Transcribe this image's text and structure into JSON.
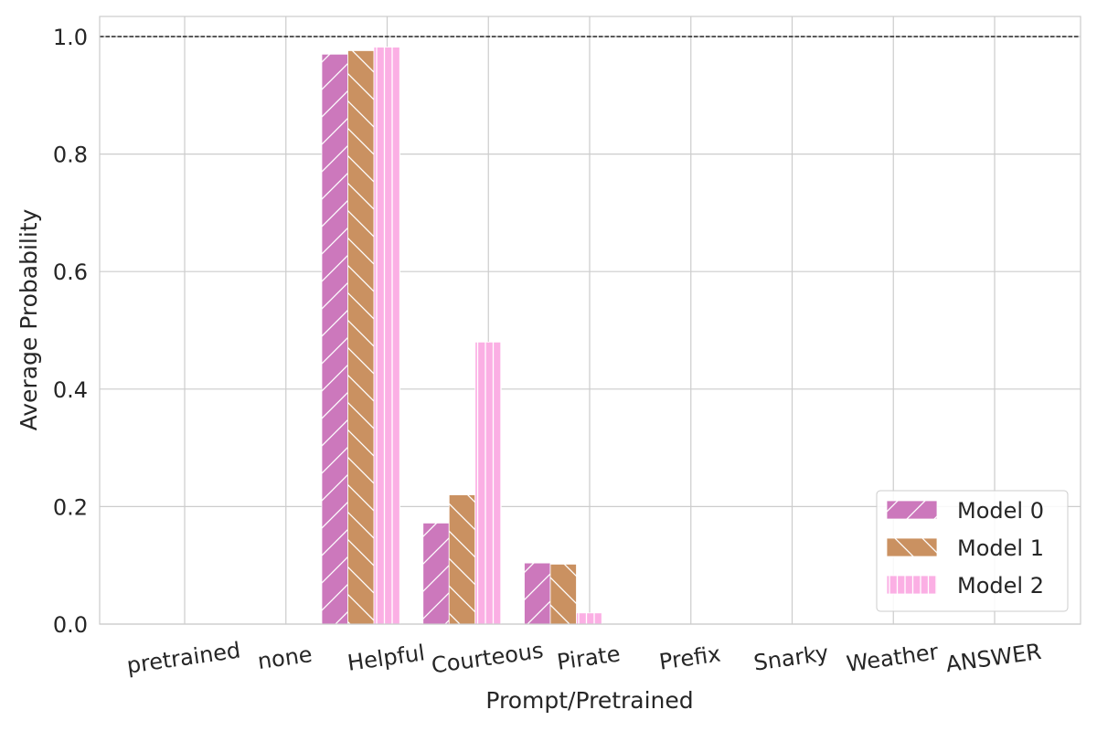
{
  "chart_data": {
    "type": "bar",
    "title": "",
    "xlabel": "Prompt/Pretrained",
    "ylabel": "Average Probability",
    "categories": [
      "pretrained",
      "none",
      "Helpful",
      "Courteous",
      "Pirate",
      "Prefix",
      "Snarky",
      "Weather",
      "ANSWER"
    ],
    "series": [
      {
        "name": "Model 0",
        "color": "#cc78bc",
        "hatch": "forward-diagonal",
        "values": [
          0.0,
          0.97,
          0.172,
          0.104,
          0.0,
          0.0,
          0.0,
          0.0,
          0.0
        ]
      },
      {
        "name": "Model 1",
        "color": "#ca9161",
        "hatch": "back-diagonal",
        "values": [
          0.0,
          0.976,
          0.22,
          0.102,
          0.0,
          0.0,
          0.0,
          0.0,
          0.0
        ]
      },
      {
        "name": "Model 2",
        "color": "#fbafe4",
        "hatch": "vertical",
        "values": [
          0.0,
          0.982,
          0.48,
          0.019,
          0.0,
          0.0,
          0.0,
          0.0,
          0.0
        ]
      }
    ],
    "ylim": [
      0.0,
      1.0
    ],
    "yticks": [
      "0.0",
      "0.2",
      "0.4",
      "0.6",
      "0.8",
      "1.0"
    ],
    "reference_line": {
      "value": 1.0,
      "style": "dashed",
      "color": "#000000"
    },
    "grid": true,
    "legend_position": "lower-right"
  }
}
